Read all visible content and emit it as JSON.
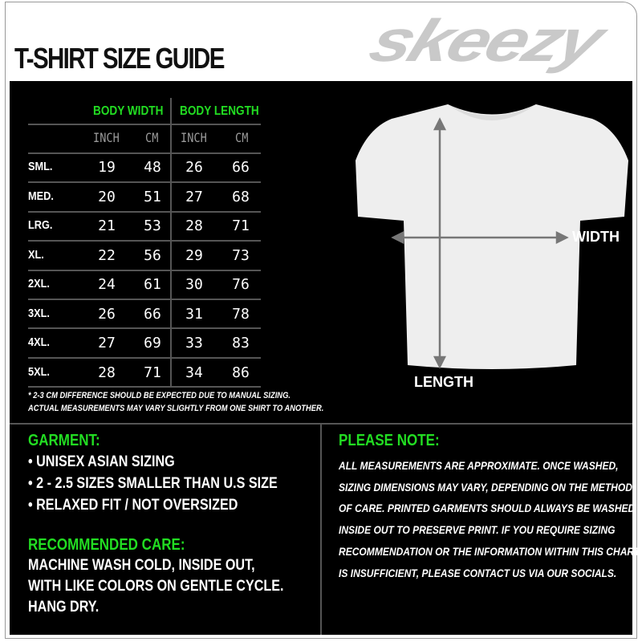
{
  "title": "T-SHIRT SIZE GUIDE",
  "logo": "skeezy",
  "table": {
    "groups": [
      "BODY WIDTH",
      "BODY LENGTH"
    ],
    "units": [
      "INCH",
      "CM",
      "INCH",
      "CM"
    ],
    "rows": [
      {
        "size": "SML.",
        "w_in": "19",
        "w_cm": "48",
        "l_in": "26",
        "l_cm": "66"
      },
      {
        "size": "MED.",
        "w_in": "20",
        "w_cm": "51",
        "l_in": "27",
        "l_cm": "68"
      },
      {
        "size": "LRG.",
        "w_in": "21",
        "w_cm": "53",
        "l_in": "28",
        "l_cm": "71"
      },
      {
        "size": "XL.",
        "w_in": "22",
        "w_cm": "56",
        "l_in": "29",
        "l_cm": "73"
      },
      {
        "size": "2XL.",
        "w_in": "24",
        "w_cm": "61",
        "l_in": "30",
        "l_cm": "76"
      },
      {
        "size": "3XL.",
        "w_in": "26",
        "w_cm": "66",
        "l_in": "31",
        "l_cm": "78"
      },
      {
        "size": "4XL.",
        "w_in": "27",
        "w_cm": "69",
        "l_in": "33",
        "l_cm": "83"
      },
      {
        "size": "5XL.",
        "w_in": "28",
        "w_cm": "71",
        "l_in": "34",
        "l_cm": "86"
      }
    ],
    "footnotes": [
      "* 2-3 CM DIFFERENCE SHOULD BE EXPECTED DUE TO MANUAL SIZING.",
      "ACTUAL MEASUREMENTS MAY VARY SLIGHTLY FROM ONE SHIRT TO ANOTHER."
    ]
  },
  "diagram": {
    "width_label": "WIDTH",
    "length_label": "LENGTH"
  },
  "garment": {
    "heading": "GARMENT:",
    "items": [
      "UNISEX ASIAN SIZING",
      "2 - 2.5 SIZES SMALLER THAN U.S SIZE",
      "RELAXED FIT / NOT OVERSIZED"
    ]
  },
  "care": {
    "heading": "RECOMMENDED CARE:",
    "lines": [
      "MACHINE WASH COLD, INSIDE OUT,",
      "WITH LIKE COLORS ON GENTLE CYCLE.",
      "HANG DRY."
    ]
  },
  "note": {
    "heading": "PLEASE NOTE:",
    "text": "ALL MEASUREMENTS ARE APPROXIMATE. ONCE  WASHED, SIZING DIMENSIONS MAY VARY, DEPENDING ON THE METHOD OF CARE. PRINTED GARMENTS SHOULD ALWAYS BE WASHED INSIDE OUT TO PRESERVE PRINT.  IF YOU REQUIRE SIZING  RECOMMENDATION OR THE INFORMATION WITHIN THIS CHART IS INSUFFICIENT, PLEASE CONTACT US VIA OUR SOCIALS."
  },
  "colors": {
    "accent": "#22dd22",
    "panel": "#000000",
    "logo": "#c9c9c9"
  }
}
